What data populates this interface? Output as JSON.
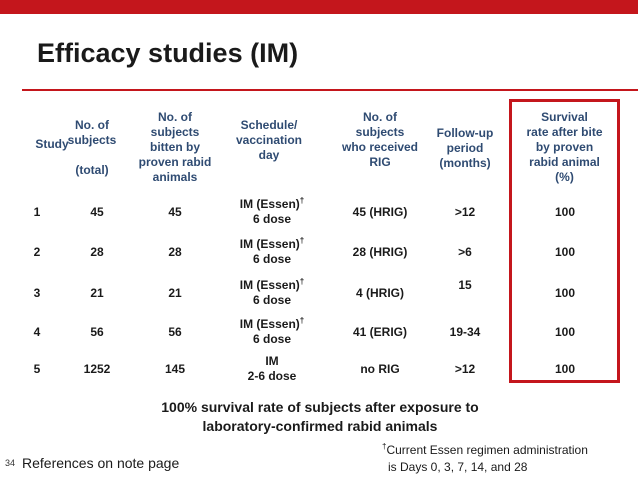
{
  "title": "Efficacy studies (IM)",
  "headers": {
    "study": "Study",
    "subjects_line1": "No. of",
    "subjects_line2": "subjects",
    "subjects_line3": "(total)",
    "bitten_line1": "No. of",
    "bitten_line2": "subjects",
    "bitten_line3": "bitten by",
    "bitten_line4": "proven rabid",
    "bitten_line5": "animals",
    "schedule_line1": "Schedule/",
    "schedule_line2": "vaccination",
    "schedule_line3": "day",
    "rig_line1": "No. of",
    "rig_line2": "subjects",
    "rig_line3": "who received",
    "rig_line4": "RIG",
    "followup_line1": "Follow-up",
    "followup_line2": "period",
    "followup_line3": "(months)",
    "survival_line1": "Survival",
    "survival_line2": "rate after bite",
    "survival_line3": "by proven",
    "survival_line4": "rabid animal",
    "survival_line5": "(%)"
  },
  "rows": [
    {
      "study": "1",
      "total": "45",
      "bitten": "45",
      "schedule1": "IM (Essen)",
      "sched_mark": "†",
      "schedule2": "6 dose",
      "rig": "45 (HRIG)",
      "followup": ">12",
      "survival": "100"
    },
    {
      "study": "2",
      "total": "28",
      "bitten": "28",
      "schedule1": "IM (Essen)",
      "sched_mark": "†",
      "schedule2": "6 dose",
      "rig": "28 (HRIG)",
      "followup": ">6",
      "survival": "100"
    },
    {
      "study": "3",
      "total": "21",
      "bitten": "21",
      "schedule1": "IM (Essen)",
      "sched_mark": "†",
      "schedule2": "6 dose",
      "rig": "4 (HRIG)",
      "followup": "15",
      "survival": "100"
    },
    {
      "study": "4",
      "total": "56",
      "bitten": "56",
      "schedule1": "IM (Essen)",
      "sched_mark": "†",
      "schedule2": "6 dose",
      "rig": "41 (ERIG)",
      "followup": "19-34",
      "survival": "100"
    },
    {
      "study": "5",
      "total": "1252",
      "bitten": "145",
      "schedule1": "IM",
      "sched_mark": "",
      "schedule2": "2-6 dose",
      "rig": "no RIG",
      "followup": ">12",
      "survival": "100"
    }
  ],
  "summary_line1": "100% survival rate of subjects after exposure to",
  "summary_line2": "laboratory-confirmed rabid animals",
  "page_number": "34",
  "references": "References on note page",
  "footnote_mark": "†",
  "footnote_line1": "Current Essen regimen administration",
  "footnote_line2": "is Days 0, 3, 7, 14, and 28",
  "colors": {
    "accent_red": "#c4161c",
    "header_blue": "#2f4b72"
  }
}
